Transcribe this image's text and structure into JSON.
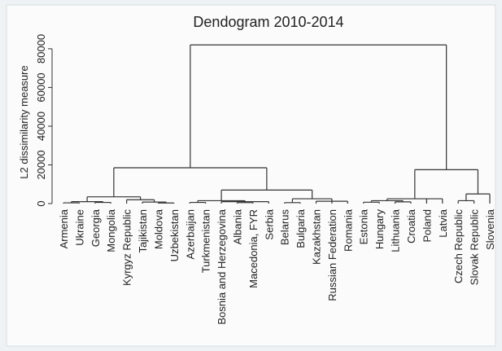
{
  "chart_data": {
    "type": "dendrogram",
    "title": "Dendogram 2010-2014",
    "ylabel": "L2 dissimilarity measure",
    "ylim": [
      0,
      85000
    ],
    "yticks": [
      0,
      20000,
      40000,
      60000,
      80000
    ],
    "color": "#333333",
    "tree": {
      "height": 82000,
      "children": [
        {
          "height": 18500,
          "children": [
            {
              "height": 3500,
              "children": [
                {
                  "height": 1000,
                  "children": [
                    {
                      "height": 400,
                      "children": [
                        {
                          "name": "Armenia"
                        },
                        {
                          "name": "Ukraine"
                        }
                      ]
                    },
                    {
                      "height": 600,
                      "children": [
                        {
                          "name": "Georgia"
                        },
                        {
                          "name": "Mongolia"
                        }
                      ]
                    }
                  ]
                },
                {
                  "height": 2000,
                  "children": [
                    {
                      "name": "Kyrgyz Republic"
                    },
                    {
                      "height": 800,
                      "children": [
                        {
                          "name": "Tajikistan"
                        },
                        {
                          "height": 300,
                          "children": [
                            {
                              "name": "Moldova"
                            },
                            {
                              "name": "Uzbekistan"
                            }
                          ]
                        }
                      ]
                    }
                  ]
                }
              ]
            },
            {
              "height": 7000,
              "children": [
                {
                  "height": 1500,
                  "children": [
                    {
                      "height": 600,
                      "children": [
                        {
                          "name": "Azerbaijan"
                        },
                        {
                          "name": "Turkmenistan"
                        }
                      ]
                    },
                    {
                      "height": 1000,
                      "children": [
                        {
                          "name": "Bosnia and Herzegovina"
                        },
                        {
                          "height": 500,
                          "children": [
                            {
                              "name": "Albania"
                            },
                            {
                              "name": "Macedonia, FYR"
                            }
                          ]
                        },
                        {
                          "name": "Serbia"
                        }
                      ]
                    }
                  ]
                },
                {
                  "height": 2500,
                  "children": [
                    {
                      "height": 500,
                      "children": [
                        {
                          "name": "Belarus"
                        },
                        {
                          "name": "Bulgaria"
                        }
                      ]
                    },
                    {
                      "height": 1200,
                      "children": [
                        {
                          "name": "Kazakhstan"
                        },
                        {
                          "name": "Russian Federation"
                        },
                        {
                          "name": "Romania"
                        }
                      ]
                    }
                  ]
                }
              ]
            }
          ]
        },
        {
          "height": 17500,
          "children": [
            {
              "height": 2500,
              "children": [
                {
                  "height": 1500,
                  "children": [
                    {
                      "height": 700,
                      "children": [
                        {
                          "name": "Estonia"
                        },
                        {
                          "name": "Hungary"
                        }
                      ]
                    },
                    {
                      "height": 900,
                      "children": [
                        {
                          "name": "Lithuania"
                        },
                        {
                          "name": "Croatia"
                        }
                      ]
                    }
                  ]
                },
                {
                  "name": "Poland"
                },
                {
                  "name": "Latvia"
                }
              ]
            },
            {
              "height": 5000,
              "children": [
                {
                  "height": 1500,
                  "children": [
                    {
                      "name": "Czech Republic"
                    },
                    {
                      "name": "Slovak Republic"
                    }
                  ]
                },
                {
                  "name": "Slovenia"
                }
              ]
            }
          ]
        }
      ]
    }
  }
}
